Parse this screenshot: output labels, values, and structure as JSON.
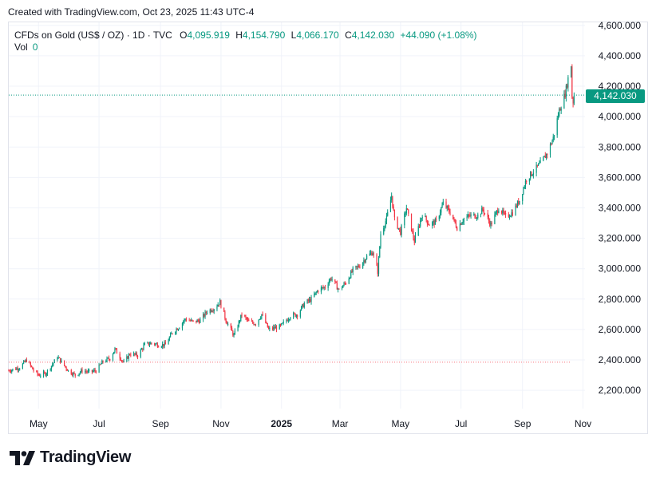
{
  "header": {
    "created_text": "Created with TradingView.com, Oct 23, 2025 11:43 UTC-4"
  },
  "legend": {
    "symbol": "CFDs on Gold (US$ / OZ) · 1D · TVC",
    "open_label": "O",
    "open_value": "4,095.919",
    "high_label": "H",
    "high_value": "4,154.790",
    "low_label": "L",
    "low_value": "4,066.170",
    "close_label": "C",
    "close_value": "4,142.030",
    "change_value": "+44.090 (+1.08%)",
    "vol_label": "Vol",
    "vol_value": "0"
  },
  "price_tag": {
    "value": "4,142.030"
  },
  "logo": {
    "wordmark": "TradingView"
  },
  "colors": {
    "up": "#089981",
    "down": "#f23645",
    "grid": "#f0f3fa",
    "axis_text": "#131722",
    "current_line": "#089981",
    "old_line": "#f23645"
  },
  "chart_data": {
    "type": "candlestick",
    "title": "CFDs on Gold (US$ / OZ)",
    "interval": "1D",
    "x_tick_labels": [
      "May",
      "Jul",
      "Sep",
      "Nov",
      "2025",
      "Mar",
      "May",
      "Jul",
      "Sep",
      "Nov"
    ],
    "x_tick_months": [
      "2024-05",
      "2024-07",
      "2024-09",
      "2024-11",
      "2025-01",
      "2025-03",
      "2025-05",
      "2025-07",
      "2025-09",
      "2025-11"
    ],
    "x_range": [
      "2024-04-01",
      "2025-11-03"
    ],
    "y_ticks": [
      2200,
      2400,
      2600,
      2800,
      3000,
      3200,
      3400,
      3600,
      3800,
      4000,
      4200,
      4400,
      4600
    ],
    "y_tick_labels": [
      "2,200.000",
      "2,400.000",
      "2,600.000",
      "2,800.000",
      "3,000.000",
      "3,200.000",
      "3,400.000",
      "3,600.000",
      "3,800.000",
      "4,000.000",
      "4,200.000",
      "4,400.000",
      "4,600.000"
    ],
    "ylim": [
      2080,
      4620
    ],
    "grid": true,
    "current_price": 4142.03,
    "reference_line": 2385,
    "series": [
      {
        "name": "Close (approx.)",
        "points": [
          [
            "2024-04-01",
            2330
          ],
          [
            "2024-04-12",
            2350
          ],
          [
            "2024-04-19",
            2400
          ],
          [
            "2024-04-26",
            2330
          ],
          [
            "2024-05-01",
            2300
          ],
          [
            "2024-05-08",
            2310
          ],
          [
            "2024-05-16",
            2380
          ],
          [
            "2024-05-20",
            2420
          ],
          [
            "2024-05-31",
            2330
          ],
          [
            "2024-06-07",
            2300
          ],
          [
            "2024-06-14",
            2330
          ],
          [
            "2024-06-21",
            2320
          ],
          [
            "2024-06-28",
            2330
          ],
          [
            "2024-07-05",
            2390
          ],
          [
            "2024-07-12",
            2410
          ],
          [
            "2024-07-17",
            2470
          ],
          [
            "2024-07-26",
            2380
          ],
          [
            "2024-08-01",
            2440
          ],
          [
            "2024-08-09",
            2430
          ],
          [
            "2024-08-16",
            2500
          ],
          [
            "2024-08-23",
            2510
          ],
          [
            "2024-08-30",
            2500
          ],
          [
            "2024-09-06",
            2500
          ],
          [
            "2024-09-13",
            2580
          ],
          [
            "2024-09-20",
            2620
          ],
          [
            "2024-09-26",
            2670
          ],
          [
            "2024-10-04",
            2650
          ],
          [
            "2024-10-11",
            2660
          ],
          [
            "2024-10-18",
            2720
          ],
          [
            "2024-10-25",
            2740
          ],
          [
            "2024-10-31",
            2780
          ],
          [
            "2024-11-06",
            2660
          ],
          [
            "2024-11-14",
            2560
          ],
          [
            "2024-11-22",
            2700
          ],
          [
            "2024-11-29",
            2650
          ],
          [
            "2024-12-06",
            2640
          ],
          [
            "2024-12-12",
            2700
          ],
          [
            "2024-12-19",
            2600
          ],
          [
            "2024-12-31",
            2620
          ],
          [
            "2025-01-10",
            2690
          ],
          [
            "2025-01-17",
            2700
          ],
          [
            "2025-01-24",
            2770
          ],
          [
            "2025-01-31",
            2800
          ],
          [
            "2025-02-07",
            2860
          ],
          [
            "2025-02-14",
            2880
          ],
          [
            "2025-02-20",
            2940
          ],
          [
            "2025-02-28",
            2860
          ],
          [
            "2025-03-07",
            2910
          ],
          [
            "2025-03-14",
            2990
          ],
          [
            "2025-03-21",
            3020
          ],
          [
            "2025-03-28",
            3080
          ],
          [
            "2025-04-03",
            3110
          ],
          [
            "2025-04-08",
            2980
          ],
          [
            "2025-04-11",
            3230
          ],
          [
            "2025-04-17",
            3330
          ],
          [
            "2025-04-22",
            3480
          ],
          [
            "2025-04-25",
            3320
          ],
          [
            "2025-05-01",
            3240
          ],
          [
            "2025-05-07",
            3400
          ],
          [
            "2025-05-15",
            3180
          ],
          [
            "2025-05-23",
            3360
          ],
          [
            "2025-05-30",
            3290
          ],
          [
            "2025-06-06",
            3310
          ],
          [
            "2025-06-13",
            3430
          ],
          [
            "2025-06-20",
            3370
          ],
          [
            "2025-06-27",
            3270
          ],
          [
            "2025-07-04",
            3330
          ],
          [
            "2025-07-11",
            3350
          ],
          [
            "2025-07-18",
            3350
          ],
          [
            "2025-07-23",
            3390
          ],
          [
            "2025-07-31",
            3290
          ],
          [
            "2025-08-08",
            3400
          ],
          [
            "2025-08-15",
            3340
          ],
          [
            "2025-08-22",
            3370
          ],
          [
            "2025-08-29",
            3450
          ],
          [
            "2025-09-05",
            3590
          ],
          [
            "2025-09-12",
            3640
          ],
          [
            "2025-09-19",
            3690
          ],
          [
            "2025-09-26",
            3760
          ],
          [
            "2025-10-02",
            3860
          ],
          [
            "2025-10-08",
            4040
          ],
          [
            "2025-10-14",
            4150
          ],
          [
            "2025-10-17",
            4250
          ],
          [
            "2025-10-20",
            4340
          ],
          [
            "2025-10-21",
            4130
          ],
          [
            "2025-10-22",
            4098
          ],
          [
            "2025-10-23",
            4142
          ]
        ]
      }
    ]
  }
}
